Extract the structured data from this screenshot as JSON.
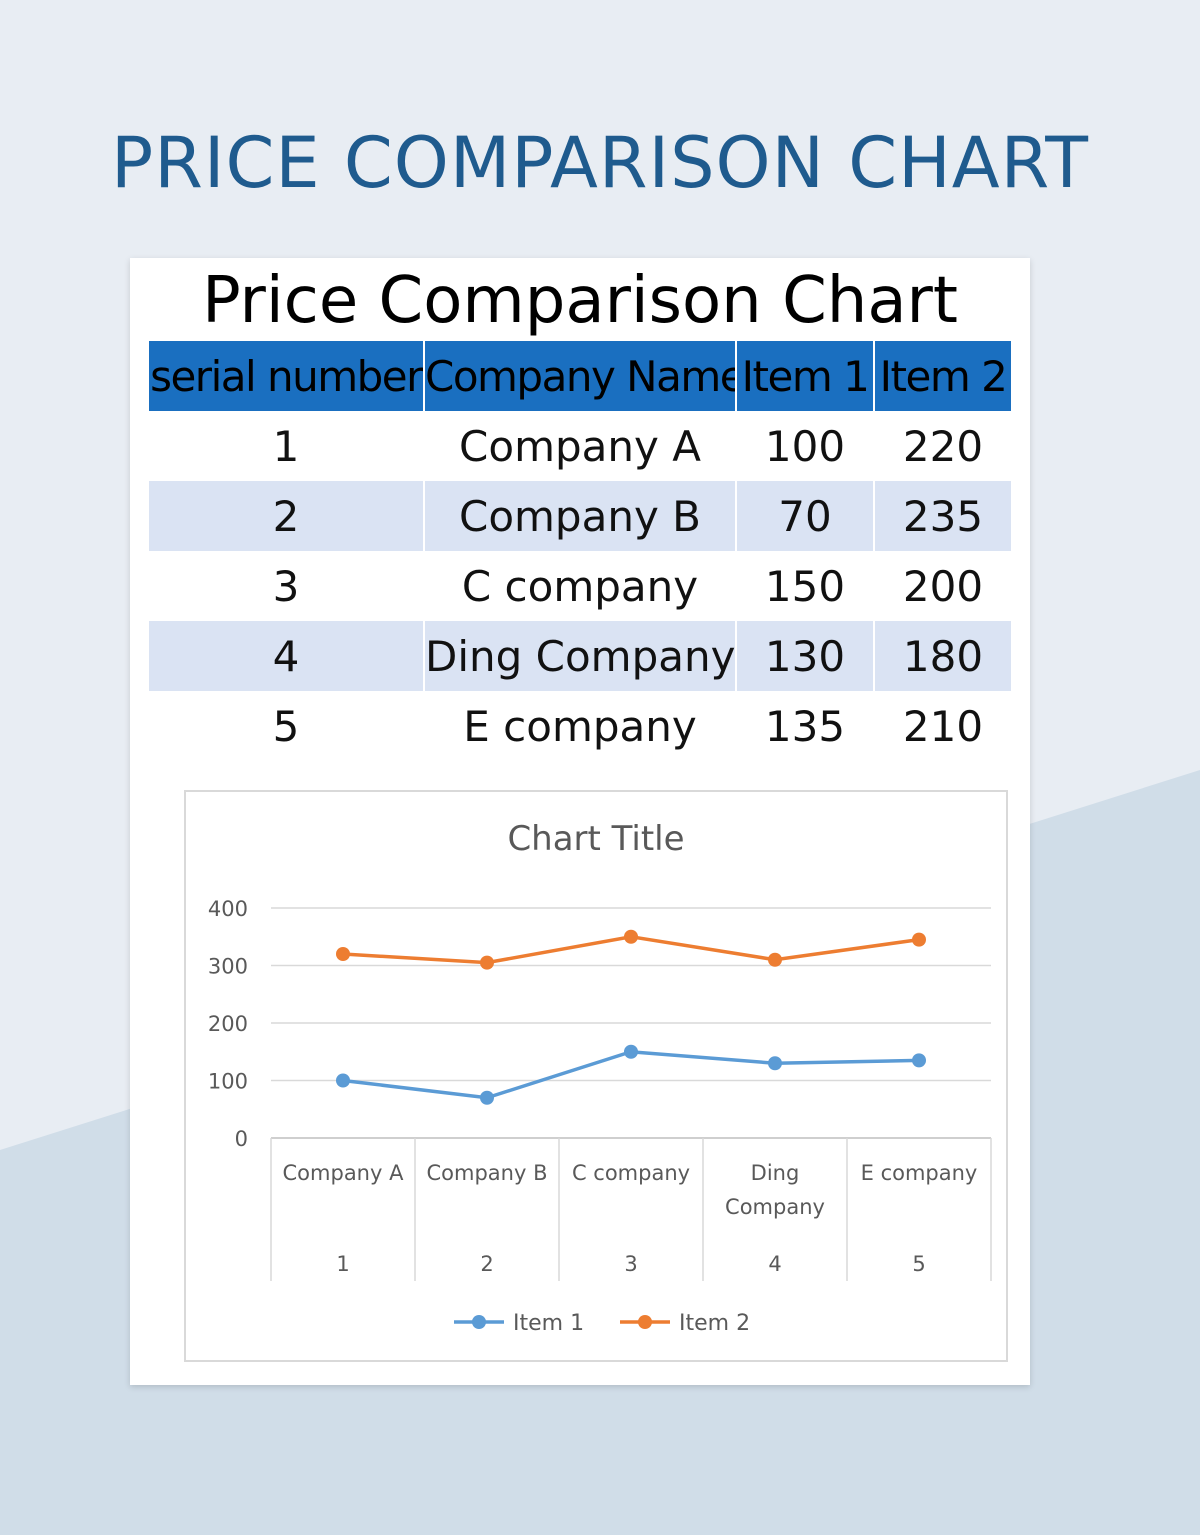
{
  "page": {
    "title": "PRICE COMPARISON CHART"
  },
  "sheet": {
    "title": "Price Comparison Chart"
  },
  "table": {
    "headers": [
      "serial number",
      "Company Name",
      "Item 1",
      "Item 2"
    ],
    "rows": [
      [
        "1",
        "Company A",
        "100",
        "220"
      ],
      [
        "2",
        "Company B",
        "70",
        "235"
      ],
      [
        "3",
        "C company",
        "150",
        "200"
      ],
      [
        "4",
        "Ding Company",
        "130",
        "180"
      ],
      [
        "5",
        "E company",
        "135",
        "210"
      ]
    ]
  },
  "chart_data": {
    "type": "line",
    "title": "Chart Title",
    "categories": [
      "Company A",
      "Company B",
      "C company",
      "Ding Company",
      "E company"
    ],
    "category_serials": [
      "1",
      "2",
      "3",
      "4",
      "5"
    ],
    "series": [
      {
        "name": "Item 1",
        "values": [
          100,
          70,
          150,
          130,
          135
        ],
        "color": "#5b9bd5"
      },
      {
        "name": "Item 2",
        "values": [
          320,
          305,
          350,
          310,
          345
        ],
        "color": "#ed7d31"
      }
    ],
    "ylim": [
      0,
      400
    ],
    "yticks": [
      "0",
      "100",
      "200",
      "300",
      "400"
    ],
    "grid": true,
    "legend": "bottom"
  },
  "colors": {
    "title_blue": "#1f5b8e",
    "header_blue": "#1a6fc0",
    "row_alt": "#dae3f3"
  }
}
